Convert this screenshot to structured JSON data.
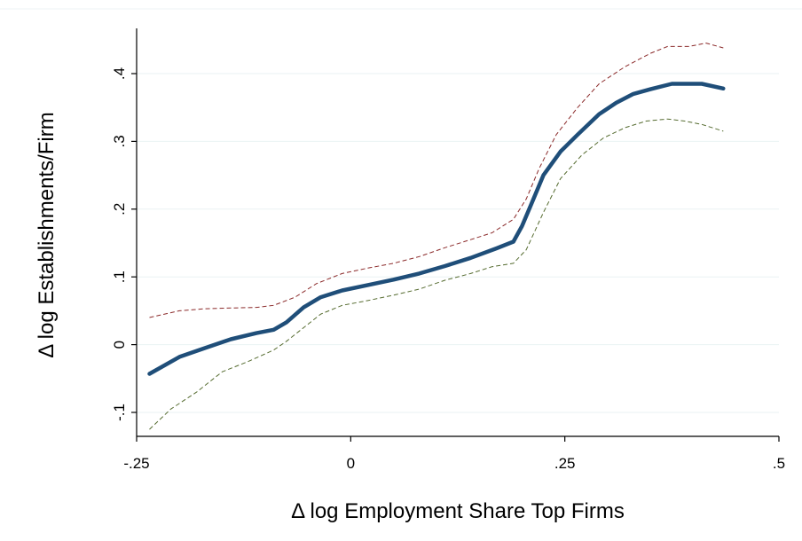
{
  "chart_data": {
    "type": "line",
    "title": "",
    "xlabel": "Δ log Employment Share Top Firms",
    "ylabel": "Δ log Establishments/Firm",
    "xlim": [
      -0.25,
      0.5
    ],
    "ylim": [
      -0.1,
      0.4
    ],
    "x_ticks": [
      {
        "value": -0.25,
        "label": "-.25"
      },
      {
        "value": 0,
        "label": "0"
      },
      {
        "value": 0.25,
        "label": ".25"
      },
      {
        "value": 0.5,
        "label": ".5"
      }
    ],
    "y_ticks": [
      {
        "value": -0.1,
        "label": "-.1"
      },
      {
        "value": 0,
        "label": "0"
      },
      {
        "value": 0.1,
        "label": ".1"
      },
      {
        "value": 0.2,
        "label": ".2"
      },
      {
        "value": 0.3,
        "label": ".3"
      },
      {
        "value": 0.4,
        "label": ".4"
      }
    ],
    "grid": "horizontal",
    "legend": "none",
    "series": [
      {
        "role": "estimate",
        "color": "#1f4e79",
        "style": "solid-thick",
        "points": [
          [
            -0.235,
            -0.043
          ],
          [
            -0.2,
            -0.018
          ],
          [
            -0.17,
            -0.005
          ],
          [
            -0.14,
            0.008
          ],
          [
            -0.11,
            0.017
          ],
          [
            -0.09,
            0.022
          ],
          [
            -0.075,
            0.033
          ],
          [
            -0.055,
            0.055
          ],
          [
            -0.035,
            0.07
          ],
          [
            -0.01,
            0.08
          ],
          [
            0.02,
            0.088
          ],
          [
            0.05,
            0.096
          ],
          [
            0.08,
            0.105
          ],
          [
            0.11,
            0.116
          ],
          [
            0.14,
            0.128
          ],
          [
            0.17,
            0.142
          ],
          [
            0.19,
            0.152
          ],
          [
            0.2,
            0.175
          ],
          [
            0.21,
            0.205
          ],
          [
            0.225,
            0.25
          ],
          [
            0.245,
            0.285
          ],
          [
            0.265,
            0.31
          ],
          [
            0.29,
            0.34
          ],
          [
            0.31,
            0.357
          ],
          [
            0.33,
            0.37
          ],
          [
            0.35,
            0.377
          ],
          [
            0.375,
            0.385
          ],
          [
            0.41,
            0.385
          ],
          [
            0.435,
            0.378
          ]
        ]
      },
      {
        "role": "upper-band",
        "color": "#8b2a2a",
        "style": "dashed",
        "points": [
          [
            -0.235,
            0.04
          ],
          [
            -0.2,
            0.05
          ],
          [
            -0.17,
            0.053
          ],
          [
            -0.14,
            0.054
          ],
          [
            -0.11,
            0.055
          ],
          [
            -0.09,
            0.058
          ],
          [
            -0.065,
            0.07
          ],
          [
            -0.04,
            0.09
          ],
          [
            -0.01,
            0.105
          ],
          [
            0.02,
            0.113
          ],
          [
            0.05,
            0.12
          ],
          [
            0.08,
            0.13
          ],
          [
            0.11,
            0.143
          ],
          [
            0.14,
            0.155
          ],
          [
            0.165,
            0.165
          ],
          [
            0.19,
            0.185
          ],
          [
            0.205,
            0.215
          ],
          [
            0.22,
            0.26
          ],
          [
            0.24,
            0.31
          ],
          [
            0.265,
            0.35
          ],
          [
            0.29,
            0.385
          ],
          [
            0.32,
            0.41
          ],
          [
            0.35,
            0.43
          ],
          [
            0.37,
            0.44
          ],
          [
            0.395,
            0.44
          ],
          [
            0.415,
            0.445
          ],
          [
            0.435,
            0.438
          ]
        ]
      },
      {
        "role": "lower-band",
        "color": "#556b2f",
        "style": "dashed",
        "points": [
          [
            -0.235,
            -0.125
          ],
          [
            -0.21,
            -0.095
          ],
          [
            -0.18,
            -0.07
          ],
          [
            -0.15,
            -0.04
          ],
          [
            -0.12,
            -0.025
          ],
          [
            -0.09,
            -0.008
          ],
          [
            -0.075,
            0.005
          ],
          [
            -0.055,
            0.025
          ],
          [
            -0.035,
            0.045
          ],
          [
            -0.01,
            0.058
          ],
          [
            0.02,
            0.065
          ],
          [
            0.05,
            0.073
          ],
          [
            0.08,
            0.082
          ],
          [
            0.11,
            0.095
          ],
          [
            0.14,
            0.105
          ],
          [
            0.165,
            0.115
          ],
          [
            0.19,
            0.12
          ],
          [
            0.205,
            0.14
          ],
          [
            0.225,
            0.195
          ],
          [
            0.245,
            0.245
          ],
          [
            0.27,
            0.28
          ],
          [
            0.295,
            0.305
          ],
          [
            0.32,
            0.32
          ],
          [
            0.345,
            0.33
          ],
          [
            0.37,
            0.333
          ],
          [
            0.39,
            0.33
          ],
          [
            0.41,
            0.325
          ],
          [
            0.435,
            0.315
          ]
        ]
      }
    ]
  }
}
